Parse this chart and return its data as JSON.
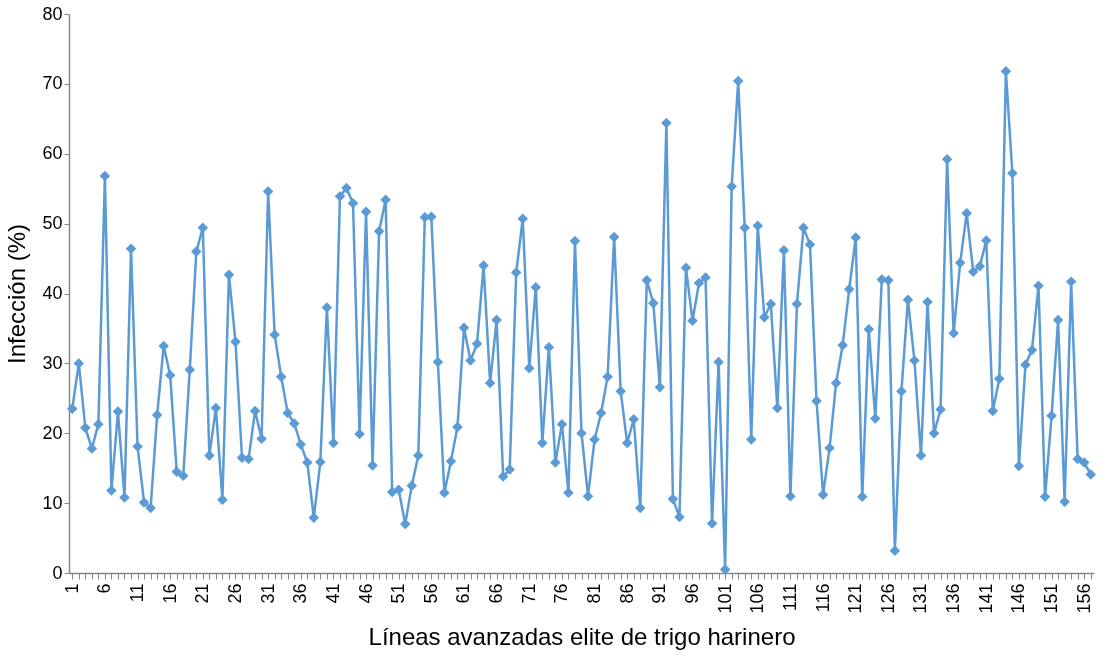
{
  "chart_data": {
    "type": "line",
    "xlabel": "Líneas avanzadas elite de trigo harinero",
    "ylabel": "Infección (%)",
    "categories": [
      "1",
      null,
      null,
      null,
      null,
      "6",
      null,
      null,
      null,
      null,
      "11",
      null,
      null,
      null,
      null,
      "16",
      null,
      null,
      null,
      null,
      "21",
      null,
      null,
      null,
      null,
      "26",
      null,
      null,
      null,
      null,
      "31",
      null,
      null,
      null,
      null,
      "36",
      null,
      null,
      null,
      null,
      "41",
      null,
      null,
      null,
      null,
      "46",
      null,
      null,
      null,
      null,
      "51",
      null,
      null,
      null,
      null,
      "56",
      null,
      null,
      null,
      null,
      "61",
      null,
      null,
      null,
      null,
      "66",
      null,
      null,
      null,
      null,
      "71",
      null,
      null,
      null,
      null,
      "76",
      null,
      null,
      null,
      null,
      "81",
      null,
      null,
      null,
      null,
      "86",
      null,
      null,
      null,
      null,
      "91",
      null,
      null,
      null,
      null,
      "96",
      null,
      null,
      null,
      null,
      "101",
      null,
      null,
      null,
      null,
      "106",
      null,
      null,
      null,
      null,
      "111",
      null,
      null,
      null,
      null,
      "116",
      null,
      null,
      null,
      null,
      "121",
      null,
      null,
      null,
      null,
      "126",
      null,
      null,
      null,
      null,
      "131",
      null,
      null,
      null,
      null,
      "136",
      null,
      null,
      null,
      null,
      "141",
      null,
      null,
      null,
      null,
      "146",
      null,
      null,
      null,
      null,
      "151",
      null,
      null,
      null,
      null,
      "156",
      null
    ],
    "series": [
      {
        "color": "#5b9bd5",
        "values": [
          23.5,
          30,
          20.8,
          17.8,
          21.3,
          56.8,
          11.8,
          23.1,
          10.8,
          46.4,
          18.1,
          10.1,
          9.3,
          22.6,
          32.5,
          28.3,
          14.5,
          13.9,
          29.1,
          46.0,
          49.4,
          16.8,
          23.6,
          10.5,
          42.7,
          33.1,
          16.5,
          16.3,
          23.2,
          19.2,
          54.6,
          34.1,
          28.1,
          22.9,
          21.4,
          18.4,
          15.8,
          7.9,
          15.9,
          38.0,
          18.6,
          53.9,
          55.1,
          52.9,
          19.9,
          51.7,
          15.4,
          48.9,
          53.4,
          11.6,
          11.9,
          7.0,
          12.5,
          16.8,
          50.9,
          51.0,
          30.2,
          11.5,
          16.0,
          20.9,
          35.1,
          30.4,
          32.8,
          44.0,
          27.2,
          36.2,
          13.8,
          14.8,
          43.0,
          50.7,
          29.3,
          40.9,
          18.6,
          32.3,
          15.8,
          21.3,
          11.5,
          47.5,
          20.0,
          11.0,
          19.1,
          22.9,
          28.1,
          48.1,
          26.0,
          18.6,
          22.0,
          9.3,
          41.9,
          38.6,
          26.6,
          64.4,
          10.6,
          8.0,
          43.7,
          36.1,
          41.5,
          42.3,
          7.1,
          30.2,
          0.5,
          55.3,
          70.4,
          49.4,
          19.1,
          49.7,
          36.6,
          38.5,
          23.6,
          46.2,
          11.0,
          38.5,
          49.4,
          47.0,
          24.6,
          11.2,
          17.9,
          27.2,
          32.6,
          40.6,
          48.0,
          10.9,
          34.9,
          22.1,
          42.0,
          41.9,
          3.2,
          26.0,
          39.1,
          30.4,
          16.8,
          38.8,
          20.0,
          23.4,
          59.2,
          34.3,
          44.4,
          51.5,
          43.1,
          43.9,
          47.6,
          23.2,
          27.8,
          71.8,
          57.2,
          15.3,
          29.8,
          31.9,
          41.1,
          10.9,
          22.5,
          36.2,
          10.2,
          41.7,
          16.3,
          15.8,
          14.1
        ]
      }
    ],
    "ylim": [
      0,
      80
    ],
    "yticks": [
      0,
      10,
      20,
      30,
      40,
      50,
      60,
      70,
      80
    ],
    "grid": false,
    "marker": "diamond",
    "line_style": "solid"
  }
}
